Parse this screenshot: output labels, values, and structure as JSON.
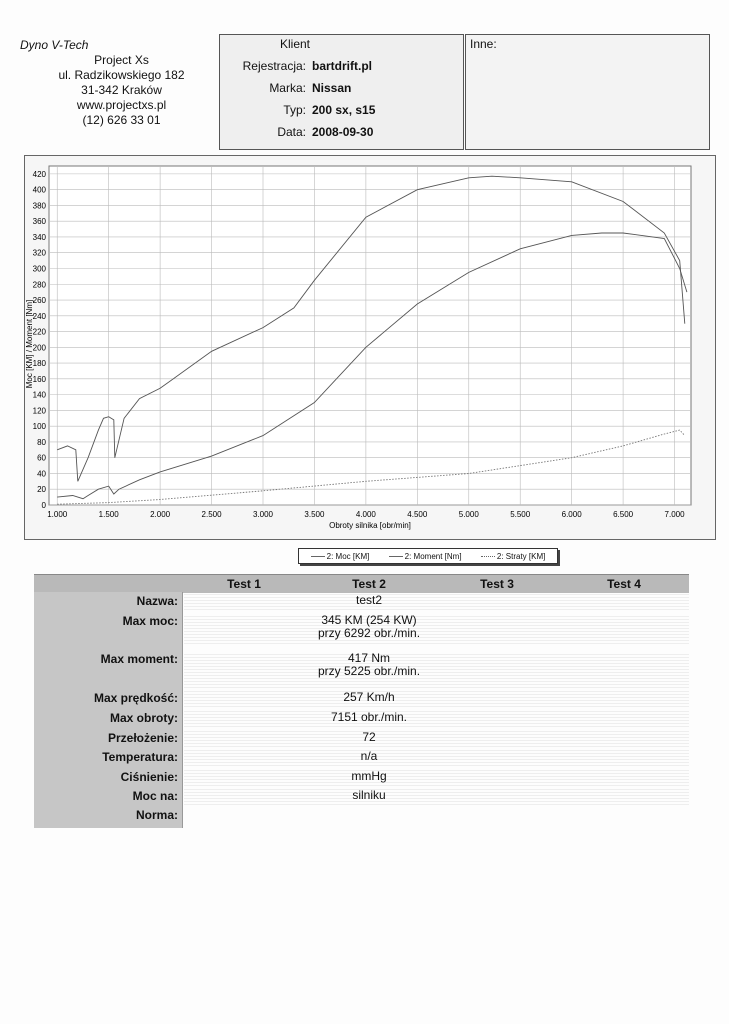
{
  "company": {
    "name": "Dyno V-Tech",
    "lines": [
      "Project Xs",
      "ul. Radzikowskiego 182",
      "31-342 Kraków",
      "www.projectxs.pl",
      "(12) 626 33 01"
    ]
  },
  "client": {
    "header": "Klient",
    "rows": [
      {
        "label": "Rejestracja:",
        "value": "bartdrift.pl"
      },
      {
        "label": "Marka:",
        "value": "Nissan"
      },
      {
        "label": "Typ:",
        "value": "200 sx, s15"
      },
      {
        "label": "Data:",
        "value": "2008-09-30"
      }
    ]
  },
  "notes": {
    "label": "Inne:"
  },
  "chart_data": {
    "type": "line",
    "xlabel": "Obroty silnika [obr/min]",
    "ylabel": "Moc [KM] / Moment [Nm]",
    "xlim": [
      920,
      7160
    ],
    "ylim": [
      0,
      430
    ],
    "x_ticks": [
      "1.000",
      "1.500",
      "2.000",
      "2.500",
      "3.000",
      "3.500",
      "4.000",
      "4.500",
      "5.000",
      "5.500",
      "6.000",
      "6.500",
      "7.000"
    ],
    "y_ticks": [
      0,
      20,
      40,
      60,
      80,
      100,
      120,
      140,
      160,
      180,
      200,
      220,
      240,
      260,
      280,
      300,
      320,
      340,
      360,
      380,
      400,
      420
    ],
    "grid": true,
    "legend_position": "bottom",
    "series": [
      {
        "name": "2: Moc [KM]",
        "color": "#555555",
        "x": [
          1000,
          1150,
          1250,
          1300,
          1400,
          1500,
          1550,
          1600,
          1800,
          2000,
          2500,
          3000,
          3500,
          4000,
          4500,
          5000,
          5500,
          6000,
          6292,
          6500,
          6900,
          7050,
          7120
        ],
        "y": [
          10,
          12,
          8,
          12,
          20,
          24,
          14,
          20,
          32,
          42,
          62,
          88,
          130,
          200,
          255,
          295,
          325,
          342,
          345,
          345,
          338,
          300,
          270
        ]
      },
      {
        "name": "2: Moment [Nm]",
        "color": "#555555",
        "x": [
          1000,
          1100,
          1180,
          1200,
          1300,
          1400,
          1450,
          1500,
          1550,
          1560,
          1650,
          1800,
          2000,
          2500,
          3000,
          3300,
          3500,
          4000,
          4500,
          5000,
          5225,
          5500,
          6000,
          6500,
          6900,
          7050,
          7100
        ],
        "y": [
          70,
          75,
          70,
          30,
          60,
          95,
          110,
          112,
          108,
          60,
          110,
          135,
          148,
          195,
          225,
          250,
          285,
          365,
          400,
          415,
          417,
          415,
          410,
          385,
          345,
          310,
          230
        ]
      },
      {
        "name": "2: Straty [KM]",
        "color": "#777777",
        "x": [
          1000,
          1500,
          2000,
          3000,
          4000,
          5000,
          6000,
          6500,
          6900,
          7050,
          7100
        ],
        "y": [
          1,
          3,
          7,
          18,
          30,
          40,
          60,
          75,
          90,
          95,
          88
        ]
      }
    ]
  },
  "results": {
    "headers": [
      "Test 1",
      "Test 2",
      "Test 3",
      "Test 4"
    ],
    "rows": [
      {
        "label": "Nazwa:",
        "value": "test2"
      },
      {
        "label": "Max moc:",
        "value": "345 KM (254 KW)",
        "value2": "przy 6292 obr./min."
      },
      {
        "label": "Max moment:",
        "value": "417 Nm",
        "value2": "przy 5225 obr./min."
      },
      {
        "label": "Max prędkość:",
        "value": "257 Km/h"
      },
      {
        "label": "Max obroty:",
        "value": "7151 obr./min."
      },
      {
        "label": "Przełożenie:",
        "value": "72"
      },
      {
        "label": "Temperatura:",
        "value": "n/a"
      },
      {
        "label": "Ciśnienie:",
        "value": "mmHg"
      },
      {
        "label": "Moc na:",
        "value": "silniku"
      },
      {
        "label": "Norma:",
        "value": ""
      }
    ]
  }
}
